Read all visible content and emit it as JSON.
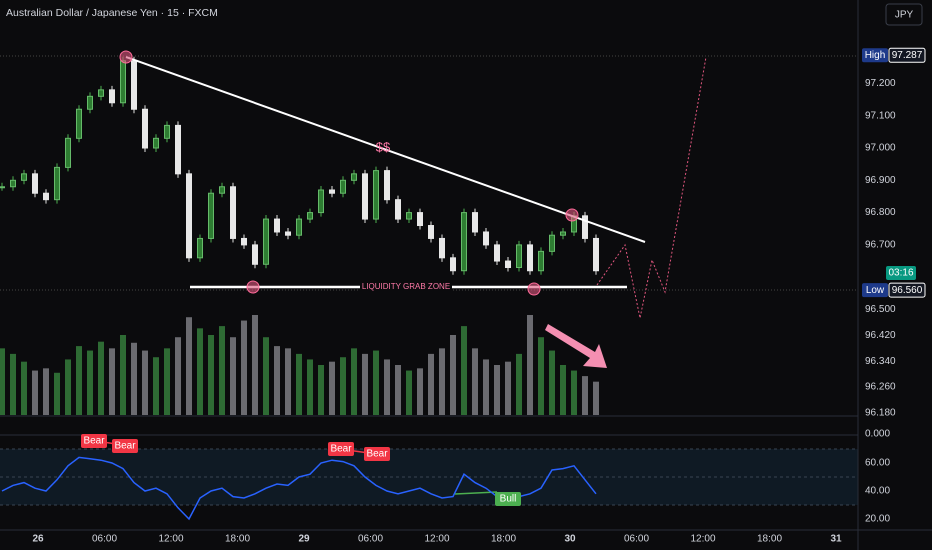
{
  "header": {
    "title": "Australian Dollar / Japanese Yen · 15 · FXCM",
    "currency": "JPY"
  },
  "chart_data": {
    "type": "candlestick",
    "closes": [
      96.88,
      96.9,
      96.92,
      96.86,
      96.84,
      96.94,
      97.03,
      97.12,
      97.16,
      97.18,
      97.14,
      97.27,
      97.12,
      97.0,
      97.03,
      97.07,
      96.92,
      96.66,
      96.72,
      96.86,
      96.88,
      96.72,
      96.7,
      96.64,
      96.78,
      96.74,
      96.73,
      96.78,
      96.8,
      96.87,
      96.86,
      96.9,
      96.92,
      96.78,
      96.93,
      96.84,
      96.78,
      96.8,
      96.76,
      96.72,
      96.66,
      96.62,
      96.8,
      96.74,
      96.7,
      96.65,
      96.63,
      96.7,
      96.62,
      96.68,
      96.73,
      96.74,
      96.79,
      96.72,
      96.62
    ],
    "volume": [
      60,
      55,
      48,
      40,
      42,
      38,
      50,
      62,
      58,
      66,
      60,
      72,
      65,
      58,
      52,
      60,
      70,
      88,
      78,
      72,
      80,
      70,
      85,
      90,
      70,
      62,
      60,
      55,
      50,
      45,
      48,
      52,
      60,
      55,
      58,
      50,
      45,
      40,
      42,
      55,
      60,
      72,
      80,
      60,
      50,
      45,
      48,
      55,
      90,
      70,
      58,
      45,
      40,
      35,
      30
    ],
    "rsi": [
      40,
      44,
      46,
      42,
      40,
      48,
      58,
      64,
      63,
      62,
      60,
      56,
      46,
      40,
      42,
      38,
      28,
      20,
      35,
      40,
      42,
      36,
      35,
      38,
      42,
      45,
      44,
      50,
      52,
      60,
      62,
      61,
      58,
      50,
      44,
      40,
      38,
      40,
      42,
      38,
      35,
      36,
      52,
      46,
      42,
      36,
      38,
      36,
      38,
      42,
      55,
      56,
      58,
      48,
      38
    ],
    "price_ticks": [
      {
        "value": 97.2,
        "label": "97.200"
      },
      {
        "value": 97.1,
        "label": "97.100"
      },
      {
        "value": 97.0,
        "label": "97.000"
      },
      {
        "value": 96.9,
        "label": "96.900"
      },
      {
        "value": 96.8,
        "label": "96.800"
      },
      {
        "value": 96.7,
        "label": "96.700"
      },
      {
        "value": 96.5,
        "label": "96.500"
      },
      {
        "value": 96.42,
        "label": "96.420"
      },
      {
        "value": 96.34,
        "label": "96.340"
      },
      {
        "value": 96.26,
        "label": "96.260"
      },
      {
        "value": 96.18,
        "label": "96.180"
      }
    ],
    "volume_tick": "0.000",
    "rsi_ticks": [
      {
        "value": 60,
        "label": "60.00"
      },
      {
        "value": 40,
        "label": "40.00"
      },
      {
        "value": 20,
        "label": "20.00"
      }
    ],
    "x_labels": [
      "26",
      "06:00",
      "12:00",
      "18:00",
      "29",
      "06:00",
      "12:00",
      "18:00",
      "30",
      "06:00",
      "12:00",
      "18:00",
      "31"
    ],
    "high": {
      "label": "High",
      "value": {
        "value": 97.287,
        "label": "97.287"
      }
    },
    "low": {
      "label": "Low",
      "value": {
        "value": 96.56,
        "label": "96.560"
      }
    },
    "countdown": "03:16",
    "annotations": {
      "target": "$$",
      "zone": "LIQUIDITY GRAB ZONE",
      "bear": [
        "Bear",
        "Bear",
        "Bear",
        "Bear"
      ],
      "bull": "Bull"
    }
  }
}
